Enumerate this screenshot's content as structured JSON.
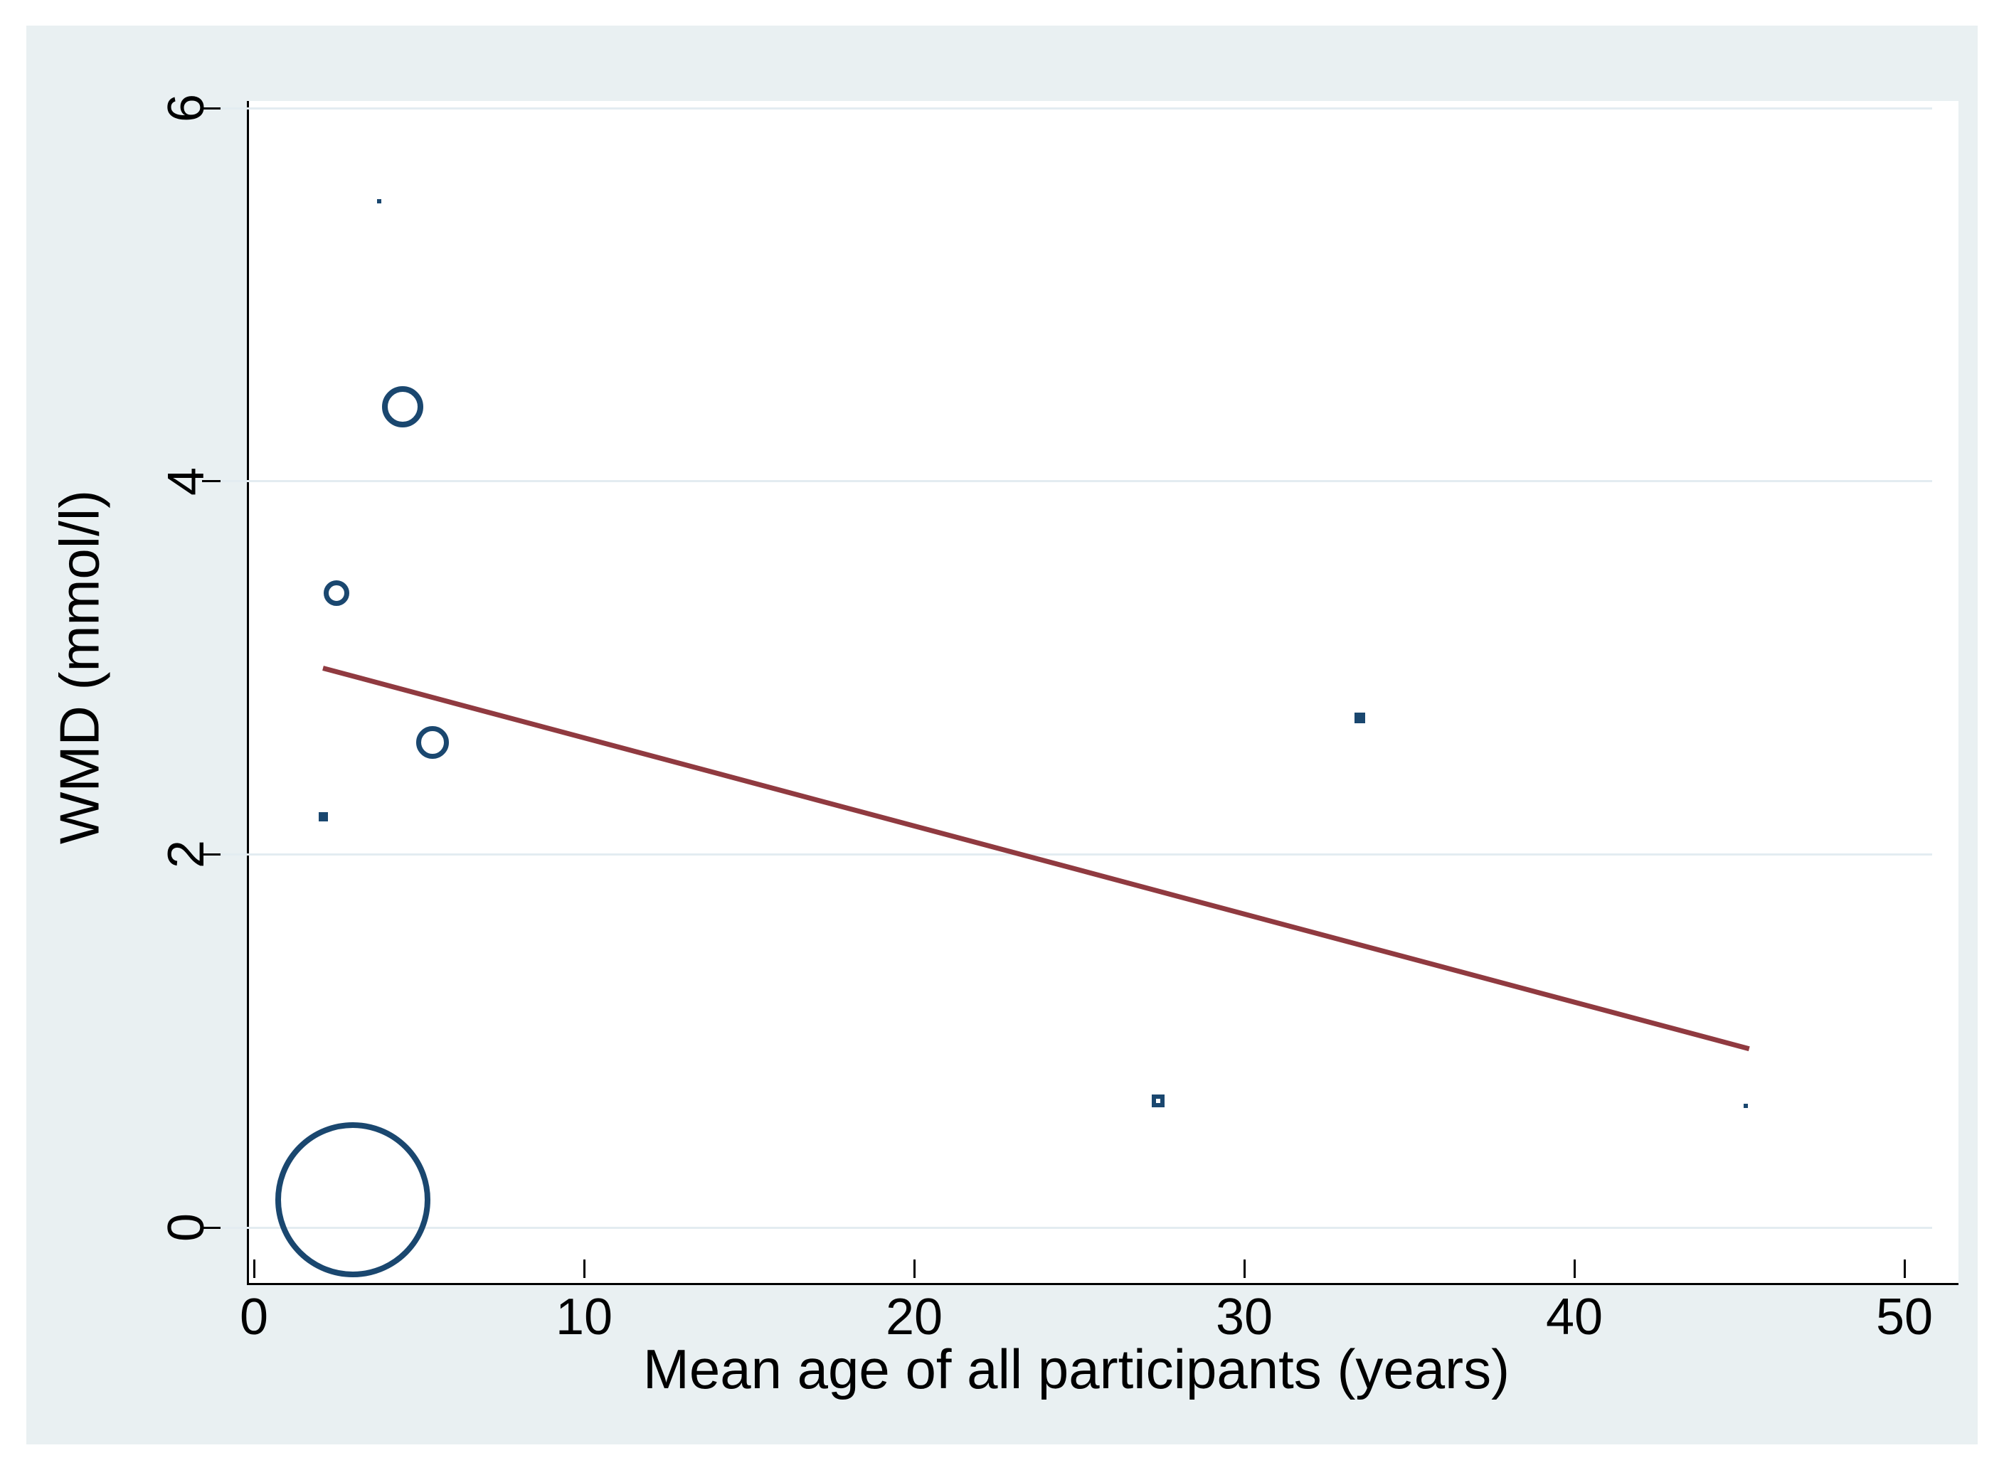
{
  "figure": {
    "outer_background": "#ffffff",
    "canvas_background": "#e9f0f2",
    "plot_background": "#ffffff",
    "grid_color": "#e3ecf1",
    "axis_color": "#000000",
    "marker_color": "#1a476f",
    "regression_color": "#903a40",
    "text_color": "#000000"
  },
  "chart_data": {
    "type": "scatter",
    "subtype": "bubble-meta-regression",
    "title": "",
    "xlabel": "Mean age of all participants (years)",
    "ylabel": "WMD (mmol/l)",
    "xlim": [
      0,
      50
    ],
    "ylim": [
      0,
      6
    ],
    "x_ticks": [
      0,
      10,
      20,
      30,
      40,
      50
    ],
    "y_ticks": [
      0,
      2,
      4,
      6
    ],
    "grid": "horizontal-only",
    "legend": "none",
    "points": [
      {
        "x": 3.8,
        "y": 5.5,
        "style": "dot-square",
        "d": 6,
        "stroke": 0
      },
      {
        "x": 4.5,
        "y": 4.4,
        "style": "ring",
        "d": 58,
        "stroke": 8
      },
      {
        "x": 2.5,
        "y": 3.4,
        "style": "ring",
        "d": 36,
        "stroke": 7
      },
      {
        "x": 5.4,
        "y": 2.6,
        "style": "ring",
        "d": 46,
        "stroke": 7
      },
      {
        "x": 2.1,
        "y": 2.2,
        "style": "dot-square",
        "d": 13,
        "stroke": 0
      },
      {
        "x": 33.5,
        "y": 2.73,
        "style": "dot-square",
        "d": 15,
        "stroke": 0
      },
      {
        "x": 27.4,
        "y": 0.68,
        "style": "square-ring",
        "d": 18,
        "stroke": 6
      },
      {
        "x": 45.2,
        "y": 0.65,
        "style": "dot-square",
        "d": 6,
        "stroke": 0
      },
      {
        "x": 3.0,
        "y": 0.15,
        "style": "ring",
        "d": 218,
        "stroke": 8
      }
    ],
    "regression_line": {
      "x1": 2.1,
      "y1": 3.0,
      "x2": 45.3,
      "y2": 0.96,
      "width": 7
    }
  }
}
